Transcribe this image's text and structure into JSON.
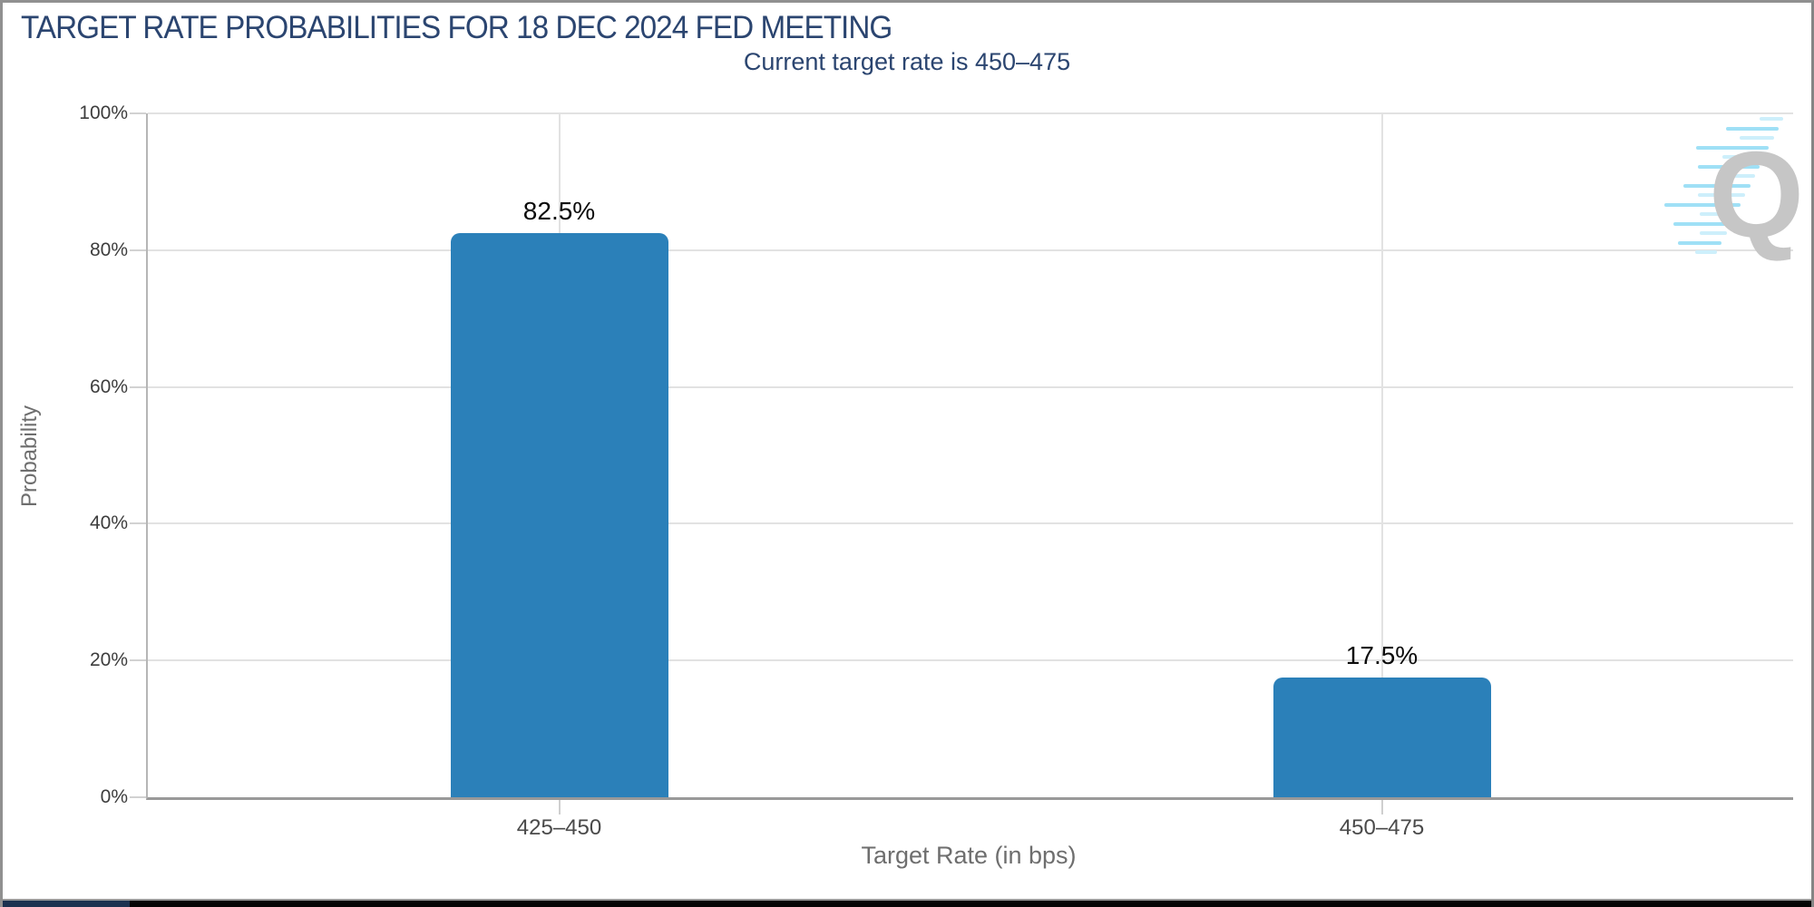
{
  "header": {
    "title": "TARGET RATE PROBABILITIES FOR 18 DEC 2024 FED MEETING",
    "subtitle": "Current target rate is 450–475"
  },
  "watermark": {
    "letter": "Q"
  },
  "colors": {
    "bar": "#2b80b9",
    "title_navy": "#2b4570",
    "grid": "#e2e2e2",
    "axis_line": "#999999",
    "watermark_gray": "#c6c6c6",
    "watermark_blue_light": "#cdeffb",
    "watermark_blue": "#9fe0f6"
  },
  "chart_data": {
    "type": "bar",
    "title": "TARGET RATE PROBABILITIES FOR 18 DEC 2024 FED MEETING",
    "subtitle": "Current target rate is 450–475",
    "categories": [
      "425–450",
      "450–475"
    ],
    "values": [
      82.5,
      17.5
    ],
    "value_labels": [
      "82.5%",
      "17.5%"
    ],
    "xlabel": "Target Rate (in bps)",
    "ylabel": "Probability",
    "ylim": [
      0,
      100
    ],
    "y_ticks": [
      0,
      20,
      40,
      60,
      80,
      100
    ],
    "y_tick_labels": [
      "0%",
      "20%",
      "40%",
      "60%",
      "80%",
      "100%"
    ],
    "grid": true,
    "legend": "none",
    "bar_color": "#2b80b9"
  }
}
